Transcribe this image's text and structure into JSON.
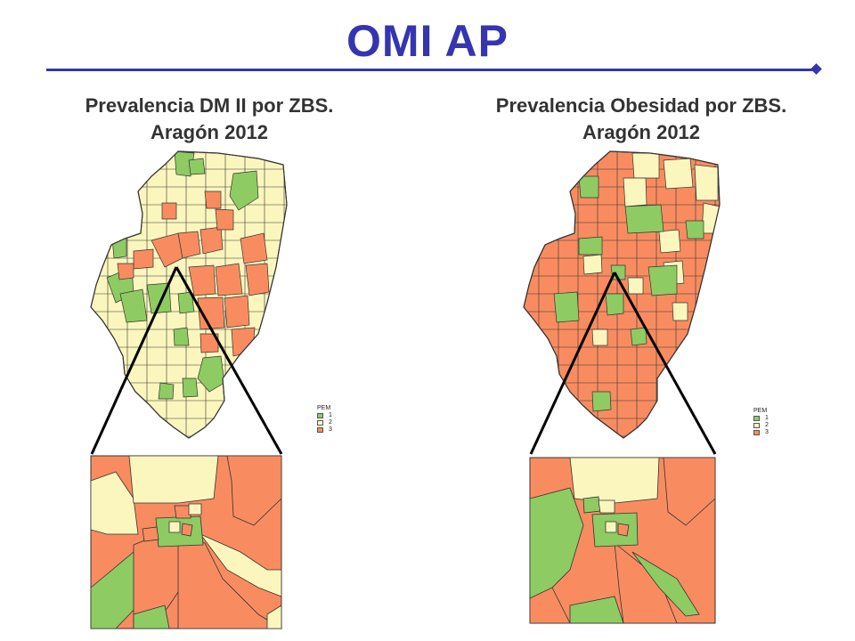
{
  "slide_title": "OMI AP",
  "maps": [
    {
      "title_line1": "Prevalencia DM II por ZBS.",
      "title_line2": "Aragón 2012"
    },
    {
      "title_line1": "Prevalencia Obesidad por ZBS.",
      "title_line2": "Aragón 2012"
    }
  ],
  "legend": {
    "title": "PEM",
    "items": [
      {
        "label": "1",
        "color": "#8ecb63"
      },
      {
        "label": "2",
        "color": "#fbf6bd"
      },
      {
        "label": "3",
        "color": "#f88c60"
      }
    ]
  },
  "colors": {
    "accent": "#3535b0",
    "class_1_green": "#8ecb63",
    "class_2_yellow": "#fbf6bd",
    "class_3_orange": "#f88c60"
  }
}
